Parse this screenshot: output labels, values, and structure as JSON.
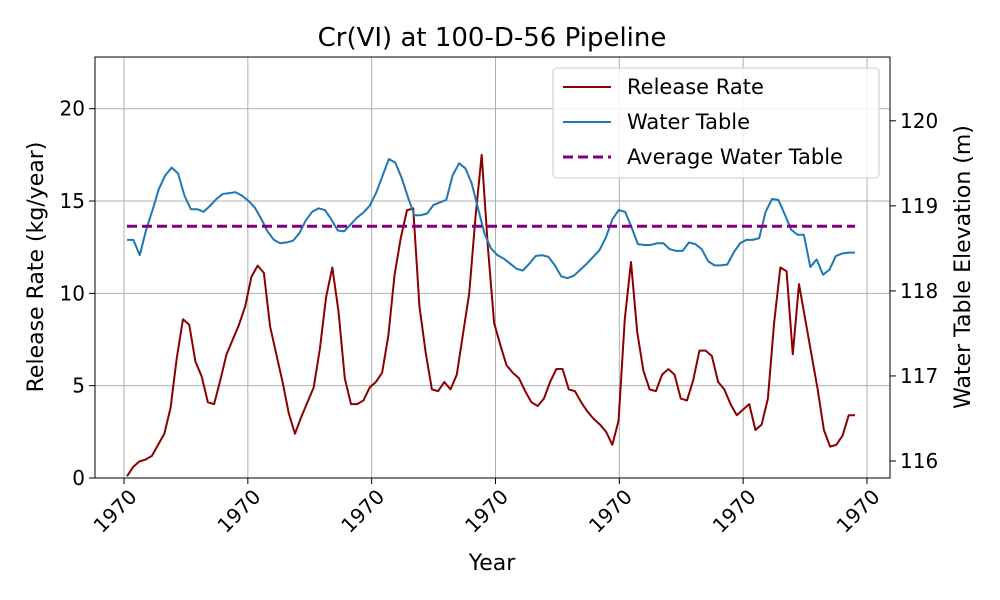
{
  "chart_data": {
    "type": "line",
    "title": "Cr(VI) at 100-D-56 Pipeline",
    "xlabel": "Year",
    "ylabel_left": "Release Rate (kg/year)",
    "ylabel_right": "Water Table Elevation (m)",
    "x_tick_labels": [
      "1970",
      "1970",
      "1970",
      "1970",
      "1970",
      "1970",
      "1970"
    ],
    "y_left_ticks": [
      0,
      5,
      10,
      15,
      20
    ],
    "y_left_lim": [
      0,
      22.8
    ],
    "y_right_ticks": [
      116,
      117,
      118,
      119,
      120
    ],
    "y_right_lim": [
      115.8,
      120.75
    ],
    "grid": true,
    "legend_position": "top-right",
    "series": [
      {
        "name": "Release Rate",
        "axis": "left",
        "color": "#8b0000",
        "style": "solid",
        "values": [
          0.1,
          0.6,
          0.9,
          1.0,
          1.2,
          1.8,
          2.4,
          3.8,
          6.5,
          8.6,
          8.3,
          6.3,
          5.5,
          4.1,
          4.0,
          5.3,
          6.7,
          7.5,
          8.3,
          9.3,
          10.9,
          11.5,
          11.1,
          8.2,
          6.7,
          5.2,
          3.5,
          2.4,
          3.3,
          4.1,
          4.9,
          7.0,
          9.8,
          11.4,
          9.0,
          5.4,
          4.0,
          4.0,
          4.2,
          4.9,
          5.2,
          5.7,
          7.7,
          11.0,
          13.0,
          14.5,
          14.6,
          9.3,
          6.8,
          4.8,
          4.7,
          5.2,
          4.8,
          5.6,
          7.8,
          10.0,
          14.1,
          17.5,
          12.5,
          8.4,
          7.2,
          6.1,
          5.7,
          5.4,
          4.7,
          4.1,
          3.9,
          4.3,
          5.2,
          5.9,
          5.9,
          4.8,
          4.7,
          4.1,
          3.6,
          3.2,
          2.9,
          2.5,
          1.8,
          3.1,
          8.6,
          11.7,
          7.9,
          5.8,
          4.8,
          4.7,
          5.6,
          5.9,
          5.6,
          4.3,
          4.2,
          5.3,
          6.9,
          6.9,
          6.6,
          5.2,
          4.8,
          4.0,
          3.4,
          3.7,
          4.0,
          2.6,
          2.9,
          4.3,
          8.4,
          11.4,
          11.2,
          6.7,
          10.5,
          8.6,
          6.7,
          4.8,
          2.6,
          1.7,
          1.8,
          2.3,
          3.4,
          3.4
        ],
        "labels_x_step": 1
      },
      {
        "name": "Water Table",
        "axis": "right",
        "color": "#1f77b4",
        "style": "solid",
        "values": [
          118.6,
          118.6,
          118.42,
          118.72,
          118.95,
          119.2,
          119.36,
          119.45,
          119.38,
          119.12,
          118.96,
          118.96,
          118.93,
          119.0,
          119.08,
          119.14,
          119.15,
          119.16,
          119.12,
          119.06,
          118.98,
          118.85,
          118.7,
          118.6,
          118.56,
          118.57,
          118.59,
          118.68,
          118.83,
          118.93,
          118.97,
          118.95,
          118.84,
          118.71,
          118.7,
          118.78,
          118.86,
          118.92,
          119.0,
          119.15,
          119.35,
          119.55,
          119.51,
          119.33,
          119.1,
          118.89,
          118.89,
          118.91,
          119.01,
          119.04,
          119.07,
          119.36,
          119.5,
          119.44,
          119.26,
          118.96,
          118.67,
          118.5,
          118.42,
          118.38,
          118.32,
          118.26,
          118.24,
          118.32,
          118.41,
          118.42,
          118.4,
          118.3,
          118.17,
          118.15,
          118.18,
          118.25,
          118.32,
          118.4,
          118.48,
          118.63,
          118.84,
          118.95,
          118.93,
          118.75,
          118.55,
          118.54,
          118.54,
          118.56,
          118.56,
          118.49,
          118.47,
          118.47,
          118.57,
          118.55,
          118.49,
          118.35,
          118.3,
          118.3,
          118.31,
          118.45,
          118.56,
          118.6,
          118.6,
          118.62,
          118.93,
          119.08,
          119.07,
          118.9,
          118.72,
          118.66,
          118.66,
          118.28,
          118.37,
          118.19,
          118.25,
          118.41,
          118.44,
          118.45,
          118.45
        ],
        "labels_x_step": 1
      },
      {
        "name": "Average Water Table",
        "axis": "right",
        "color": "#800080",
        "style": "dashed",
        "values": [
          118.76,
          118.76
        ]
      }
    ]
  }
}
